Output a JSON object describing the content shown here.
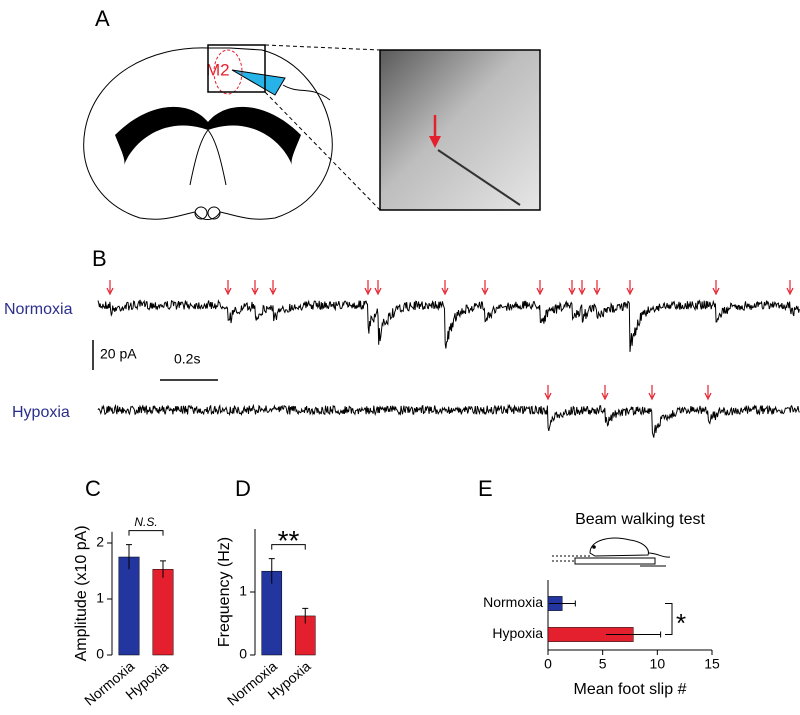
{
  "panel_labels": [
    "A",
    "B",
    "C",
    "D",
    "E"
  ],
  "panel_a": {
    "region_label": "M2"
  },
  "panel_b": {
    "traces": [
      {
        "label": "Normoxia"
      },
      {
        "label": "Hypoxia"
      }
    ],
    "scale_bar": {
      "current": "20 pA",
      "time": "0.2s"
    }
  },
  "chart_data": [
    {
      "type": "bar",
      "orientation": "vertical",
      "ylabel": "Amplitude (x10 pA)",
      "categories": [
        "Normoxia",
        "Hypoxia"
      ],
      "values": [
        1.75,
        1.53
      ],
      "errors": [
        0.22,
        0.15
      ],
      "colors": [
        "#2336a0",
        "#e5202e"
      ],
      "ylim": [
        0,
        2.2
      ],
      "yticks": [
        0,
        1,
        2
      ],
      "annotation": "N.S."
    },
    {
      "type": "bar",
      "orientation": "vertical",
      "ylabel": "Frequency (Hz)",
      "categories": [
        "Normoxia",
        "Hypoxia"
      ],
      "values": [
        1.33,
        0.62
      ],
      "errors": [
        0.2,
        0.12
      ],
      "colors": [
        "#2336a0",
        "#e5202e"
      ],
      "ylim": [
        0,
        2
      ],
      "yticks": [
        0,
        1
      ],
      "annotation": "**"
    },
    {
      "type": "bar",
      "orientation": "horizontal",
      "title": "Beam walking test",
      "xlabel": "Mean foot slip #",
      "categories": [
        "Normoxia",
        "Hypoxia"
      ],
      "values": [
        1.3,
        7.8
      ],
      "errors": [
        1.2,
        2.5
      ],
      "colors": [
        "#2336a0",
        "#e5202e"
      ],
      "xlim": [
        0,
        15
      ],
      "xticks": [
        0,
        5,
        10,
        15
      ],
      "annotation": "*"
    }
  ]
}
